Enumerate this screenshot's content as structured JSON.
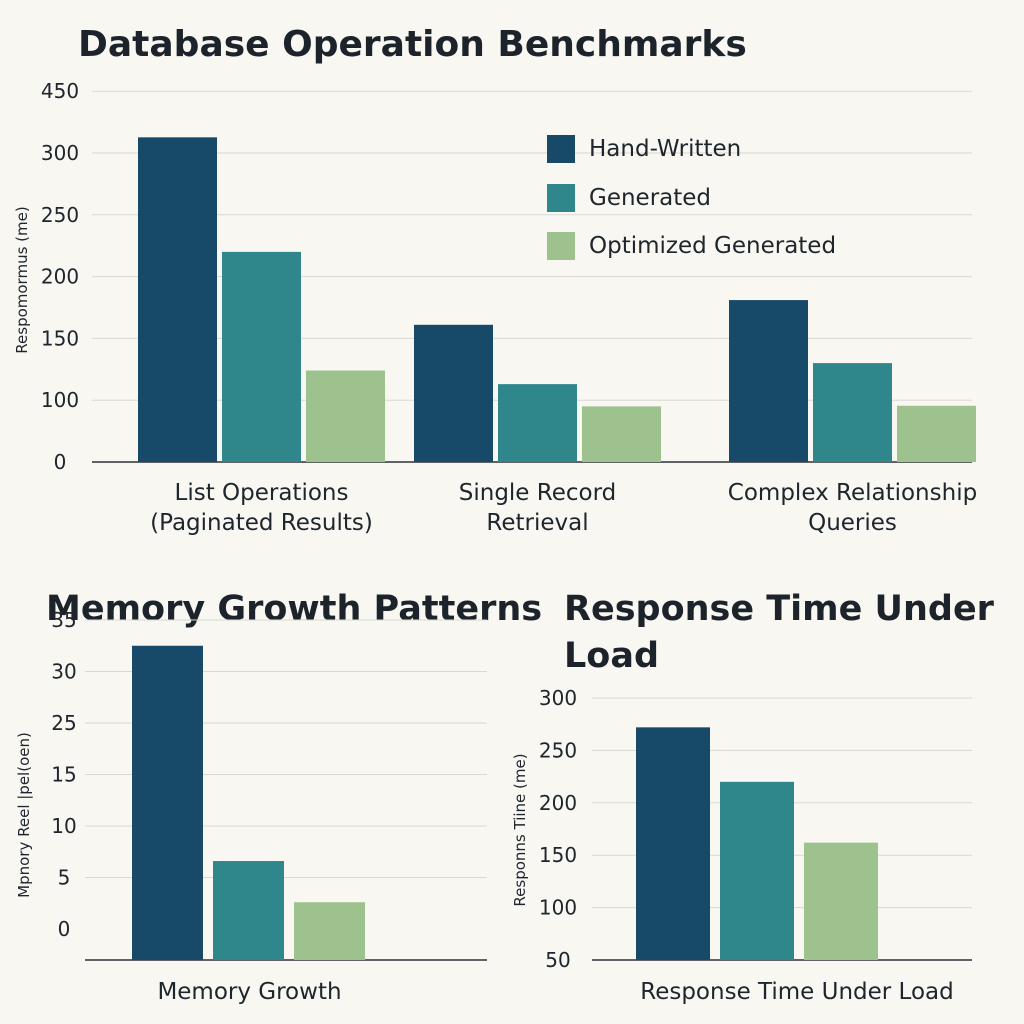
{
  "colors": {
    "hand_written": "#174a68",
    "generated": "#2f878b",
    "optimized_generated": "#9ec28e",
    "background": "#f8f7f2"
  },
  "legend": [
    "Hand-Written",
    "Generated",
    "Optimized Generated"
  ],
  "chart_data": [
    {
      "type": "bar",
      "title": "Database Operation Benchmarks",
      "ylabel": "Respomormus (me)",
      "xlabel": "",
      "y_tick_labels": [
        "0",
        "100",
        "150",
        "200",
        "250",
        "300",
        "450"
      ],
      "categories": [
        [
          "List Operations",
          "(Paginated Results)"
        ],
        [
          "Single Record",
          "Retrieval"
        ],
        [
          "Complex Relationship",
          "Queries"
        ]
      ],
      "series": [
        {
          "name": "Hand-Written",
          "values": [
            338,
            161,
            181
          ]
        },
        {
          "name": "Generated",
          "values": [
            220,
            113,
            130
          ]
        },
        {
          "name": "Optimized Generated",
          "values": [
            124,
            90,
            91
          ]
        }
      ],
      "grid": true,
      "legend_position": "top-right"
    },
    {
      "type": "bar",
      "title": "Memory Growth Patterns",
      "ylabel": "Mpnory Reel |pel(oen)",
      "xlabel": "",
      "y_tick_labels": [
        "0",
        "5",
        "10",
        "15",
        "25",
        "30",
        "35"
      ],
      "categories": [
        [
          "Memory Growth"
        ]
      ],
      "series": [
        {
          "name": "Hand-Written",
          "values": [
            32.5
          ]
        },
        {
          "name": "Generated",
          "values": [
            6.6
          ]
        },
        {
          "name": "Optimized Generated",
          "values": [
            2.6
          ]
        }
      ],
      "grid": true
    },
    {
      "type": "bar",
      "title": "Response Time Under Load",
      "ylabel": "Responns Tiine (me)",
      "xlabel": "",
      "y_tick_labels": [
        "50",
        "100",
        "150",
        "200",
        "250",
        "300"
      ],
      "categories": [
        [
          "Response Time Under Load"
        ]
      ],
      "series": [
        {
          "name": "Hand-Written",
          "values": [
            272
          ]
        },
        {
          "name": "Generated",
          "values": [
            220
          ]
        },
        {
          "name": "Optimized Generated",
          "values": [
            162
          ]
        }
      ],
      "grid": true
    }
  ]
}
